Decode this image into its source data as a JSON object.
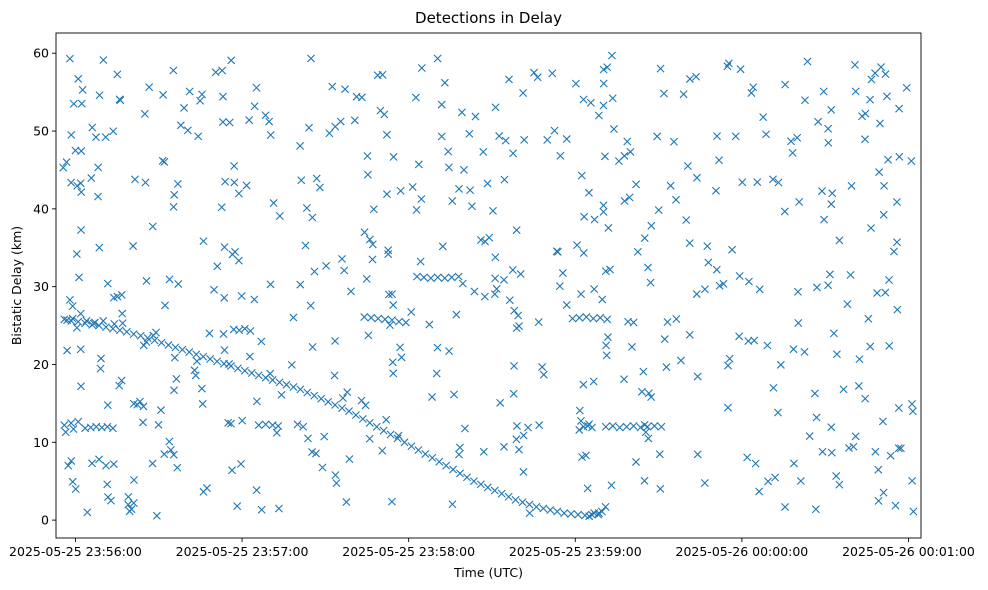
{
  "chart_data": {
    "type": "scatter",
    "title": "Detections in Delay",
    "xlabel": "Time (UTC)",
    "ylabel": "Bistatic Delay (km)",
    "x_unit": "seconds after 23:55:00 UTC on 2025-05-25",
    "x_ticks": [
      {
        "t": 60,
        "label": "2025-05-25 23:56:00"
      },
      {
        "t": 120,
        "label": "2025-05-25 23:57:00"
      },
      {
        "t": 180,
        "label": "2025-05-25 23:58:00"
      },
      {
        "t": 240,
        "label": "2025-05-25 23:59:00"
      },
      {
        "t": 300,
        "label": "2025-05-26 00:00:00"
      },
      {
        "t": 360,
        "label": "2025-05-26 00:01:00"
      }
    ],
    "xlim": [
      53.0,
      364.5
    ],
    "ylim": [
      -2.3,
      62.6
    ],
    "y_ticks": [
      0,
      10,
      20,
      30,
      40,
      50,
      60
    ],
    "grid": false,
    "marker": "x",
    "color": "#1f77b4",
    "clutter_seed": 20250525,
    "clutter_count": 520,
    "series": [
      {
        "name": "",
        "points": [
          [
            56.0,
            25.8
          ],
          [
            58.5,
            25.6
          ],
          [
            61.0,
            25.5
          ],
          [
            63.5,
            25.3
          ],
          [
            66.0,
            25.1
          ],
          [
            68.5,
            25.0
          ],
          [
            71.0,
            24.8
          ],
          [
            73.5,
            24.6
          ],
          [
            76.0,
            24.4
          ],
          [
            78.5,
            24.2
          ],
          [
            81.0,
            23.9
          ],
          [
            83.5,
            23.7
          ],
          [
            86.0,
            23.4
          ],
          [
            88.5,
            23.1
          ],
          [
            91.0,
            22.8
          ],
          [
            93.5,
            22.5
          ],
          [
            96.0,
            22.2
          ],
          [
            98.5,
            21.9
          ],
          [
            101.0,
            21.6
          ],
          [
            103.5,
            21.3
          ],
          [
            106.0,
            21.0
          ],
          [
            108.5,
            20.7
          ],
          [
            111.0,
            20.4
          ],
          [
            113.5,
            20.1
          ],
          [
            116.0,
            19.8
          ],
          [
            118.5,
            19.5
          ],
          [
            121.0,
            19.2
          ],
          [
            123.5,
            18.9
          ],
          [
            126.0,
            18.6
          ],
          [
            128.5,
            18.3
          ],
          [
            131.0,
            18.0
          ],
          [
            133.5,
            17.7
          ],
          [
            136.0,
            17.4
          ],
          [
            138.5,
            17.1
          ],
          [
            141.0,
            16.8
          ],
          [
            143.5,
            16.4
          ],
          [
            146.0,
            16.0
          ],
          [
            148.5,
            15.6
          ],
          [
            151.0,
            15.2
          ],
          [
            153.5,
            14.8
          ],
          [
            156.0,
            14.4
          ],
          [
            158.5,
            14.0
          ],
          [
            161.0,
            13.5
          ],
          [
            163.5,
            13.0
          ],
          [
            166.0,
            12.5
          ],
          [
            168.5,
            12.0
          ],
          [
            171.0,
            11.5
          ],
          [
            173.5,
            11.0
          ],
          [
            176.0,
            10.5
          ],
          [
            178.5,
            10.0
          ],
          [
            181.0,
            9.5
          ],
          [
            183.5,
            9.0
          ],
          [
            186.0,
            8.5
          ],
          [
            188.5,
            8.0
          ],
          [
            191.0,
            7.5
          ],
          [
            193.5,
            7.0
          ],
          [
            196.0,
            6.5
          ],
          [
            198.5,
            6.0
          ],
          [
            201.0,
            5.5
          ],
          [
            203.5,
            5.0
          ],
          [
            206.0,
            4.6
          ],
          [
            208.5,
            4.2
          ],
          [
            211.0,
            3.8
          ],
          [
            213.5,
            3.4
          ],
          [
            216.0,
            3.0
          ],
          [
            218.5,
            2.6
          ],
          [
            221.0,
            2.3
          ],
          [
            223.5,
            2.0
          ],
          [
            226.0,
            1.7
          ],
          [
            228.5,
            1.5
          ],
          [
            231.0,
            1.3
          ],
          [
            233.5,
            1.1
          ],
          [
            236.0,
            0.9
          ],
          [
            238.5,
            0.8
          ],
          [
            241.0,
            0.7
          ],
          [
            243.5,
            0.6
          ],
          [
            246.0,
            0.7
          ],
          [
            248.5,
            0.9
          ],
          [
            57.0,
            25.7
          ],
          [
            59.0,
            25.9
          ],
          [
            64.0,
            25.6
          ],
          [
            67.0,
            25.4
          ],
          [
            70.0,
            25.6
          ],
          [
            74.0,
            25.2
          ],
          [
            77.0,
            25.3
          ],
          [
            55.6,
            45.3
          ],
          [
            56.8,
            46.0
          ],
          [
            58.5,
            49.5
          ],
          [
            59.4,
            53.5
          ],
          [
            60.0,
            47.5
          ],
          [
            58.0,
            59.3
          ],
          [
            61.0,
            56.7
          ],
          [
            57.0,
            21.8
          ],
          [
            58.0,
            28.3
          ],
          [
            59.0,
            27.5
          ],
          [
            60.5,
            34.2
          ],
          [
            61.3,
            31.2
          ],
          [
            62.0,
            17.2
          ],
          [
            56.0,
            12.2
          ],
          [
            56.5,
            11.3
          ],
          [
            59.3,
            11.7
          ],
          [
            57.4,
            7.0
          ],
          [
            58.5,
            7.6
          ],
          [
            60.1,
            4.0
          ],
          [
            63.5,
            11.8
          ],
          [
            65.5,
            11.9
          ],
          [
            67.5,
            12.0
          ],
          [
            69.5,
            11.9
          ],
          [
            71.5,
            12.0
          ],
          [
            73.5,
            11.8
          ],
          [
            66.0,
            7.3
          ],
          [
            68.5,
            7.8
          ],
          [
            71.0,
            7.0
          ],
          [
            73.8,
            7.2
          ],
          [
            79.0,
            2.0
          ],
          [
            80.2,
            1.4
          ],
          [
            81.0,
            2.2
          ],
          [
            115.0,
            12.5
          ],
          [
            116.0,
            12.4
          ],
          [
            126.0,
            12.2
          ],
          [
            128.5,
            12.3
          ],
          [
            131.0,
            12.2
          ],
          [
            133.0,
            12.1
          ],
          [
            140.0,
            12.3
          ],
          [
            142.0,
            12.0
          ],
          [
            117.0,
            24.5
          ],
          [
            119.0,
            24.4
          ],
          [
            121.0,
            24.6
          ],
          [
            123.0,
            24.3
          ],
          [
            164.0,
            26.1
          ],
          [
            166.5,
            26.0
          ],
          [
            169.0,
            25.9
          ],
          [
            171.5,
            25.8
          ],
          [
            174.0,
            25.7
          ],
          [
            176.5,
            25.5
          ],
          [
            179.0,
            25.4
          ],
          [
            183.0,
            31.3
          ],
          [
            185.5,
            31.2
          ],
          [
            188.0,
            31.1
          ],
          [
            190.5,
            31.2
          ],
          [
            193.0,
            31.1
          ],
          [
            195.5,
            31.2
          ],
          [
            198.0,
            31.3
          ],
          [
            206.0,
            36.0
          ],
          [
            207.5,
            35.8
          ],
          [
            209.0,
            36.3
          ],
          [
            219.0,
            12.1
          ],
          [
            223.0,
            11.9
          ],
          [
            227.0,
            12.2
          ],
          [
            243.0,
            12.0
          ],
          [
            244.5,
            12.1
          ],
          [
            246.0,
            11.9
          ],
          [
            239.0,
            25.9
          ],
          [
            241.5,
            26.0
          ],
          [
            244.0,
            26.1
          ],
          [
            246.5,
            25.9
          ],
          [
            249.0,
            26.0
          ],
          [
            251.5,
            25.8
          ],
          [
            251.0,
            12.0
          ],
          [
            253.5,
            12.1
          ],
          [
            256.0,
            11.9
          ],
          [
            258.5,
            12.0
          ],
          [
            261.0,
            12.1
          ],
          [
            263.5,
            11.9
          ],
          [
            266.0,
            12.0
          ],
          [
            268.5,
            12.1
          ],
          [
            271.0,
            12.0
          ],
          [
            259.0,
            25.5
          ],
          [
            261.0,
            25.4
          ],
          [
            245.0,
            0.5
          ],
          [
            246.8,
            0.9
          ],
          [
            248.3,
            0.7
          ],
          [
            249.6,
            1.1
          ],
          [
            250.2,
            57.9
          ],
          [
            251.5,
            58.2
          ],
          [
            253.2,
            59.7
          ],
          [
            248.5,
            52.0
          ],
          [
            251.0,
            32.0
          ],
          [
            252.5,
            32.2
          ],
          [
            264.0,
            16.5
          ],
          [
            266.5,
            16.3
          ]
        ]
      }
    ]
  }
}
